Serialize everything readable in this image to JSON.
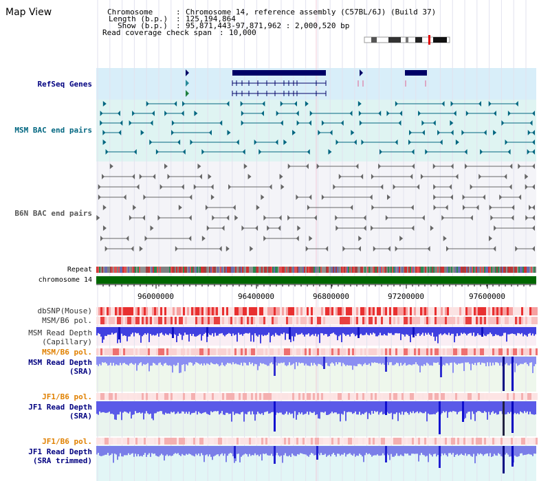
{
  "header": {
    "title": "Map View",
    "chromosome_label": "Chromosome",
    "chromosome_value": "Chromosome 14, reference assembly (C57BL/6J) (Build 37)",
    "length_label": "Length (b.p.)",
    "length_value": "125,194,864",
    "show_label": "Show (b.p.)",
    "show_value": "95,871,443-97,871,962 : 2,000,520 bp",
    "coverage_label": "Read coverage check span",
    "coverage_value": "10,000"
  },
  "tracks": {
    "refseq": "RefSeq Genes",
    "msm_bac": "MSM BAC end pairs",
    "b6n_bac": "B6N BAC end pairs",
    "repeat": "Repeat",
    "chromosome": "chromosome 14",
    "dbsnp": "dbSNP(Mouse)",
    "msm_b6_pol": "MSM/B6 pol.",
    "msm_read_cap_1": "MSM Read Depth",
    "msm_read_cap_2": "(Capillary)",
    "msm_b6_pol2": "MSM/B6 pol.",
    "msm_read_sra_1": "MSM Read Depth",
    "msm_read_sra_2": "(SRA)",
    "jf1_b6_pol": "JF1/B6 pol.",
    "jf1_read_sra_1": "JF1 Read Depth",
    "jf1_read_sra_2": "(SRA)",
    "jf1_b6_pol2": "JF1/B6 pol.",
    "jf1_read_trim_1": "JF1 Read Depth",
    "jf1_read_trim_2": "(SRA trimmed)"
  },
  "axis": {
    "ticks": [
      "96000000",
      "96400000",
      "96800000",
      "97200000",
      "97600000"
    ]
  },
  "colors": {
    "refseq": "#000066",
    "msm": "#006680",
    "b6n": "#666666",
    "chromosome_bar": "#006600",
    "msm_label": "#000080",
    "pol_label": "#e08000"
  }
}
